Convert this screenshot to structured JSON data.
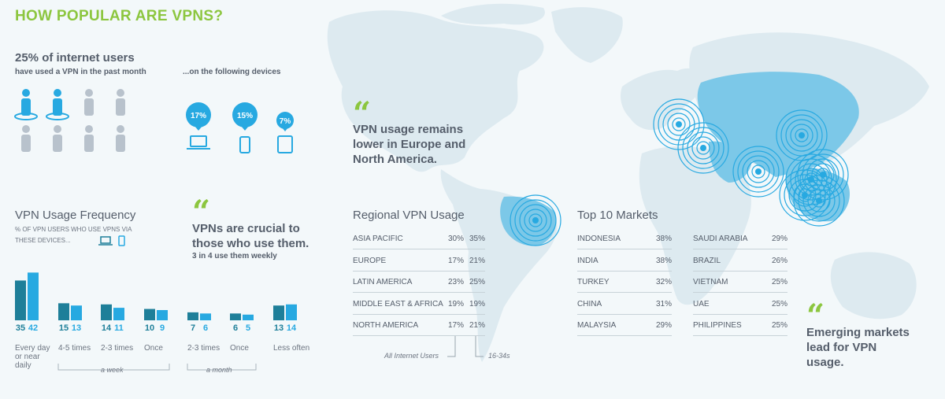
{
  "title": "HOW POPULAR ARE VPNS?",
  "stat": {
    "main": "25% of internet users",
    "sub": "have used a VPN in the past month",
    "devices_heading": "...on the following devices"
  },
  "devices": [
    {
      "value": "17%",
      "icon": "laptop-icon"
    },
    {
      "value": "15%",
      "icon": "phone-icon"
    },
    {
      "value": "7%",
      "icon": "tablet-icon"
    }
  ],
  "people_icon": "person-icon",
  "people_highlighted": 2,
  "people_total": 8,
  "quotes": {
    "europe": "VPN usage remains lower in Europe and North America.",
    "crucial": "VPNs are crucial to those who use them.",
    "crucial_sub": "3 in 4 use them weekly",
    "emerging": "Emerging markets lead for VPN usage."
  },
  "frequency": {
    "title": "VPN Usage Frequency",
    "subtitle": "% OF VPN USERS WHO USE VPNS VIA THESE DEVICES...",
    "group_week": "a week",
    "group_month": "a month"
  },
  "colors": {
    "dark_bar": "#1e7f99",
    "light_bar": "#27a9e1",
    "accent_green": "#8cc63f",
    "map_land": "#ddeaf0",
    "map_highlight": "#7cc8e8"
  },
  "chart_data": {
    "type": "bar",
    "title": "VPN Usage Frequency",
    "categories": [
      "Every day or near daily",
      "4-5 times",
      "2-3 times",
      "Once",
      "2-3 times",
      "Once",
      "Less often"
    ],
    "series": [
      {
        "values": [
          35,
          15,
          14,
          10,
          7,
          6,
          13
        ]
      },
      {
        "values": [
          42,
          13,
          11,
          9,
          6,
          5,
          14
        ]
      }
    ],
    "xlabel": "",
    "ylabel": "",
    "ylim": [
      0,
      45
    ]
  },
  "regional": {
    "title": "Regional VPN Usage",
    "rows": [
      {
        "region": "ASIA PACIFIC",
        "all": "30%",
        "young": "35%"
      },
      {
        "region": "EUROPE",
        "all": "17%",
        "young": "21%"
      },
      {
        "region": "LATIN AMERICA",
        "all": "23%",
        "young": "25%"
      },
      {
        "region": "MIDDLE EAST & AFRICA",
        "all": "19%",
        "young": "19%"
      },
      {
        "region": "NORTH AMERICA",
        "all": "17%",
        "young": "21%"
      }
    ],
    "legend_all": "All Internet Users",
    "legend_young": "16-34s"
  },
  "top_markets": {
    "title": "Top 10 Markets",
    "left": [
      {
        "name": "INDONESIA",
        "value": "38%"
      },
      {
        "name": "INDIA",
        "value": "38%"
      },
      {
        "name": "TURKEY",
        "value": "32%"
      },
      {
        "name": "CHINA",
        "value": "31%"
      },
      {
        "name": "MALAYSIA",
        "value": "29%"
      }
    ],
    "right": [
      {
        "name": "SAUDI ARABIA",
        "value": "29%"
      },
      {
        "name": "BRAZIL",
        "value": "26%"
      },
      {
        "name": "VIETNAM",
        "value": "25%"
      },
      {
        "name": "UAE",
        "value": "25%"
      },
      {
        "name": "PHILIPPINES",
        "value": "25%"
      }
    ]
  }
}
